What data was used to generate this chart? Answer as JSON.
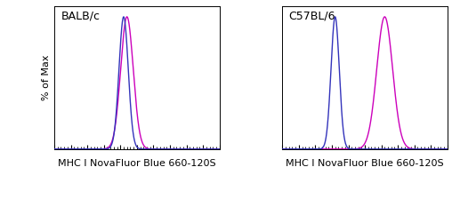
{
  "panels": [
    {
      "label": "BALB/c",
      "blue_mean": 0.42,
      "blue_std": 0.028,
      "magenta_mean": 0.44,
      "magenta_std": 0.038
    },
    {
      "label": "C57BL/6",
      "blue_mean": 0.32,
      "blue_std": 0.025,
      "magenta_mean": 0.62,
      "magenta_std": 0.048
    }
  ],
  "blue_color": "#3333bb",
  "magenta_color": "#cc00bb",
  "xlabel": "MHC I NovaFluor Blue 660-120S",
  "ylabel": "% of Max",
  "background_color": "#ffffff",
  "label_fontsize": 9,
  "axis_label_fontsize": 8,
  "xlim": [
    0,
    1
  ],
  "ylim": [
    0,
    1.08
  ]
}
